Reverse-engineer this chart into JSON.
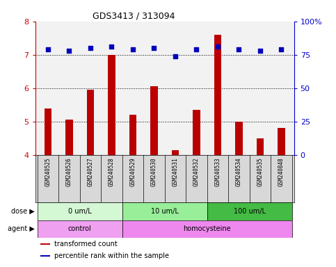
{
  "title": "GDS3413 / 313094",
  "samples": [
    "GSM240525",
    "GSM240526",
    "GSM240527",
    "GSM240528",
    "GSM240529",
    "GSM240530",
    "GSM240531",
    "GSM240532",
    "GSM240533",
    "GSM240534",
    "GSM240535",
    "GSM240848"
  ],
  "bar_values": [
    5.4,
    5.05,
    5.95,
    7.0,
    5.2,
    6.05,
    4.15,
    5.35,
    7.6,
    5.0,
    4.5,
    4.8
  ],
  "dot_values": [
    79,
    78,
    80,
    81,
    79,
    80,
    74,
    79,
    81,
    79,
    78,
    79
  ],
  "bar_color": "#bb0000",
  "dot_color": "#0000bb",
  "ylim_left": [
    4,
    8
  ],
  "ylim_right": [
    0,
    100
  ],
  "yticks_left": [
    4,
    5,
    6,
    7,
    8
  ],
  "yticks_right": [
    0,
    25,
    50,
    75,
    100
  ],
  "ytick_labels_right": [
    "0",
    "25",
    "50",
    "75",
    "100%"
  ],
  "hlines": [
    5.0,
    6.0,
    7.0
  ],
  "dose_groups": [
    {
      "label": "0 um/L",
      "start": 0,
      "end": 4,
      "color": "#d4f7d4"
    },
    {
      "label": "10 um/L",
      "start": 4,
      "end": 8,
      "color": "#99ee99"
    },
    {
      "label": "100 um/L",
      "start": 8,
      "end": 12,
      "color": "#44bb44"
    }
  ],
  "agent_groups": [
    {
      "label": "control",
      "start": 0,
      "end": 4,
      "color": "#f0a0f0"
    },
    {
      "label": "homocysteine",
      "start": 4,
      "end": 12,
      "color": "#ee88ee"
    }
  ],
  "legend_items": [
    {
      "label": "transformed count",
      "color": "#bb0000"
    },
    {
      "label": "percentile rank within the sample",
      "color": "#0000bb"
    }
  ],
  "xlabel_dose": "dose",
  "xlabel_agent": "agent",
  "tick_label_color": "#cc0000",
  "right_tick_color": "#0000cc",
  "bg_color": "#ffffff",
  "plot_bg": "#f2f2f2",
  "sample_bg": "#d8d8d8"
}
